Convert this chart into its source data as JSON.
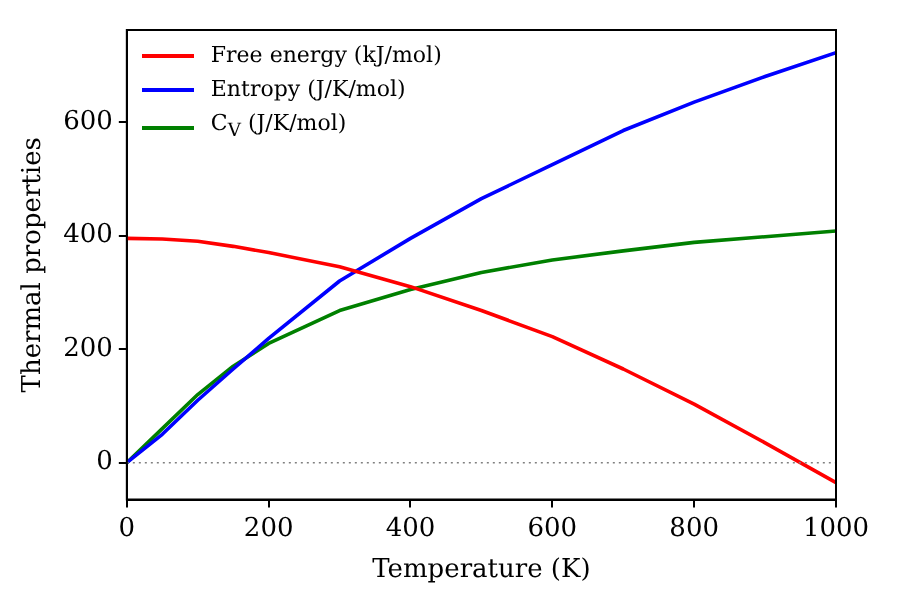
{
  "chart_data": {
    "type": "line",
    "xlabel": "Temperature (K)",
    "ylabel": "Thermal properties",
    "x": [
      0,
      50,
      100,
      150,
      200,
      300,
      400,
      500,
      600,
      700,
      800,
      900,
      1000
    ],
    "series": [
      {
        "name": "Free energy (kJ/mol)",
        "color": "#ff0000",
        "values": [
          395,
          394,
          390,
          381,
          370,
          345,
          310,
          268,
          222,
          165,
          103,
          35,
          -35
        ]
      },
      {
        "name": "Entropy (J/K/mol)",
        "color": "#0000ff",
        "values": [
          0,
          50,
          110,
          165,
          219,
          320,
          395,
          465,
          525,
          585,
          635,
          680,
          722
        ]
      },
      {
        "name": "C$_{V}$ (J/K/mol)",
        "color": "#008000",
        "values": [
          0,
          60,
          120,
          170,
          210,
          268,
          305,
          335,
          357,
          373,
          388,
          398,
          408
        ]
      }
    ],
    "xlim": [
      0,
      1000
    ],
    "xticks": [
      0,
      200,
      400,
      600,
      800,
      1000
    ],
    "ylim": [
      -65,
      762
    ],
    "yticks": [
      0,
      200,
      400,
      600
    ],
    "ref_lines": [
      {
        "axis": "y",
        "value": 0,
        "color": "#808080",
        "line_style": "dotted"
      }
    ],
    "legend": "top left",
    "marker": "none",
    "line_style": "solid",
    "grid": false
  }
}
